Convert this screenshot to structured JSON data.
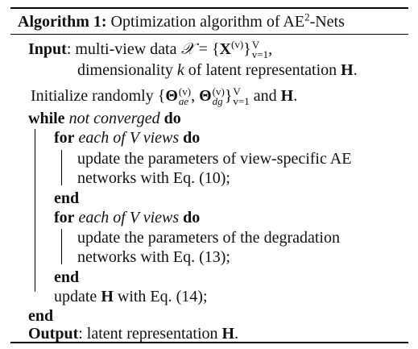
{
  "algorithm": {
    "label": "Algorithm 1:",
    "title": "Optimization algorithm of AE",
    "title_sup": "2",
    "title_suffix": "-Nets"
  },
  "math": {
    "X_script": "𝒳",
    "eq": "=",
    "lbrace": "{",
    "rbrace": "}",
    "X_bold": "X",
    "sup_v": "(v)",
    "upper_V": "V",
    "lower_v1": "v=1",
    "comma": ",",
    "k": "k",
    "H": "H",
    "period": ".",
    "Theta": "Θ",
    "ae": "ae",
    "dg": "dg"
  },
  "lines": {
    "input": {
      "keyword": "Input",
      "text1": ": multi-view data",
      "text2a": "dimensionality",
      "text2b": "of latent representation"
    },
    "init": {
      "text1": "Initialize randomly",
      "text2": "and"
    },
    "while": {
      "kw1": "while",
      "cond": "not converged",
      "kw2": "do"
    },
    "for1": {
      "kw1": "for",
      "cond": "each of V views",
      "kw2": "do",
      "body1": "update the parameters of view-specific AE",
      "body2": "networks with Eq. (10);"
    },
    "end": "end",
    "for2": {
      "kw1": "for",
      "cond": "each of V views",
      "kw2": "do",
      "body1": "update the parameters of the degradation",
      "body2": "networks with Eq. (13);"
    },
    "updateH": {
      "text1": "update",
      "text2": "with Eq. (14);"
    },
    "endWhile": "end",
    "output": {
      "keyword": "Output",
      "text": ": latent representation"
    }
  }
}
